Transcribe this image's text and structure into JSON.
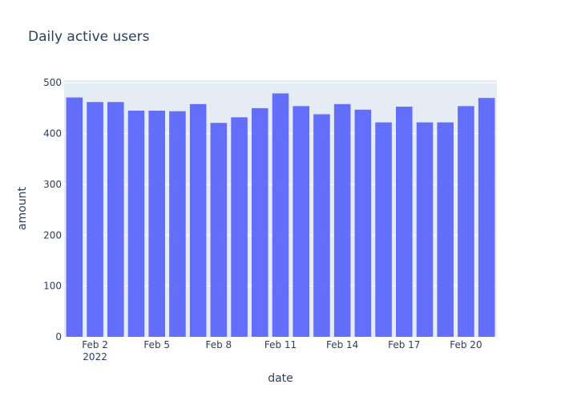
{
  "chart_data": {
    "type": "bar",
    "title": "Daily active users",
    "xlabel": "date",
    "ylabel": "amount",
    "x": [
      "2022-02-01",
      "2022-02-02",
      "2022-02-03",
      "2022-02-04",
      "2022-02-05",
      "2022-02-06",
      "2022-02-07",
      "2022-02-08",
      "2022-02-09",
      "2022-02-10",
      "2022-02-11",
      "2022-02-12",
      "2022-02-13",
      "2022-02-14",
      "2022-02-15",
      "2022-02-16",
      "2022-02-17",
      "2022-02-18",
      "2022-02-19",
      "2022-02-20",
      "2022-02-21"
    ],
    "values": [
      471,
      462,
      462,
      445,
      445,
      444,
      458,
      421,
      432,
      450,
      479,
      454,
      438,
      458,
      447,
      422,
      453,
      422,
      422,
      454,
      470
    ],
    "ylim": [
      0,
      505
    ],
    "y_ticks": [
      0,
      100,
      200,
      300,
      400,
      500
    ],
    "x_ticks": [
      {
        "date": "2022-02-02",
        "label": "Feb 2",
        "sublabel": "2022"
      },
      {
        "date": "2022-02-05",
        "label": "Feb 5"
      },
      {
        "date": "2022-02-08",
        "label": "Feb 8"
      },
      {
        "date": "2022-02-11",
        "label": "Feb 11"
      },
      {
        "date": "2022-02-14",
        "label": "Feb 14"
      },
      {
        "date": "2022-02-17",
        "label": "Feb 17"
      },
      {
        "date": "2022-02-20",
        "label": "Feb 20"
      }
    ],
    "grid": true,
    "colors": {
      "bar": "#636efa",
      "plot_bg": "#e5ecf6",
      "grid": "#ffffff",
      "text": "#2a3f5f"
    }
  }
}
